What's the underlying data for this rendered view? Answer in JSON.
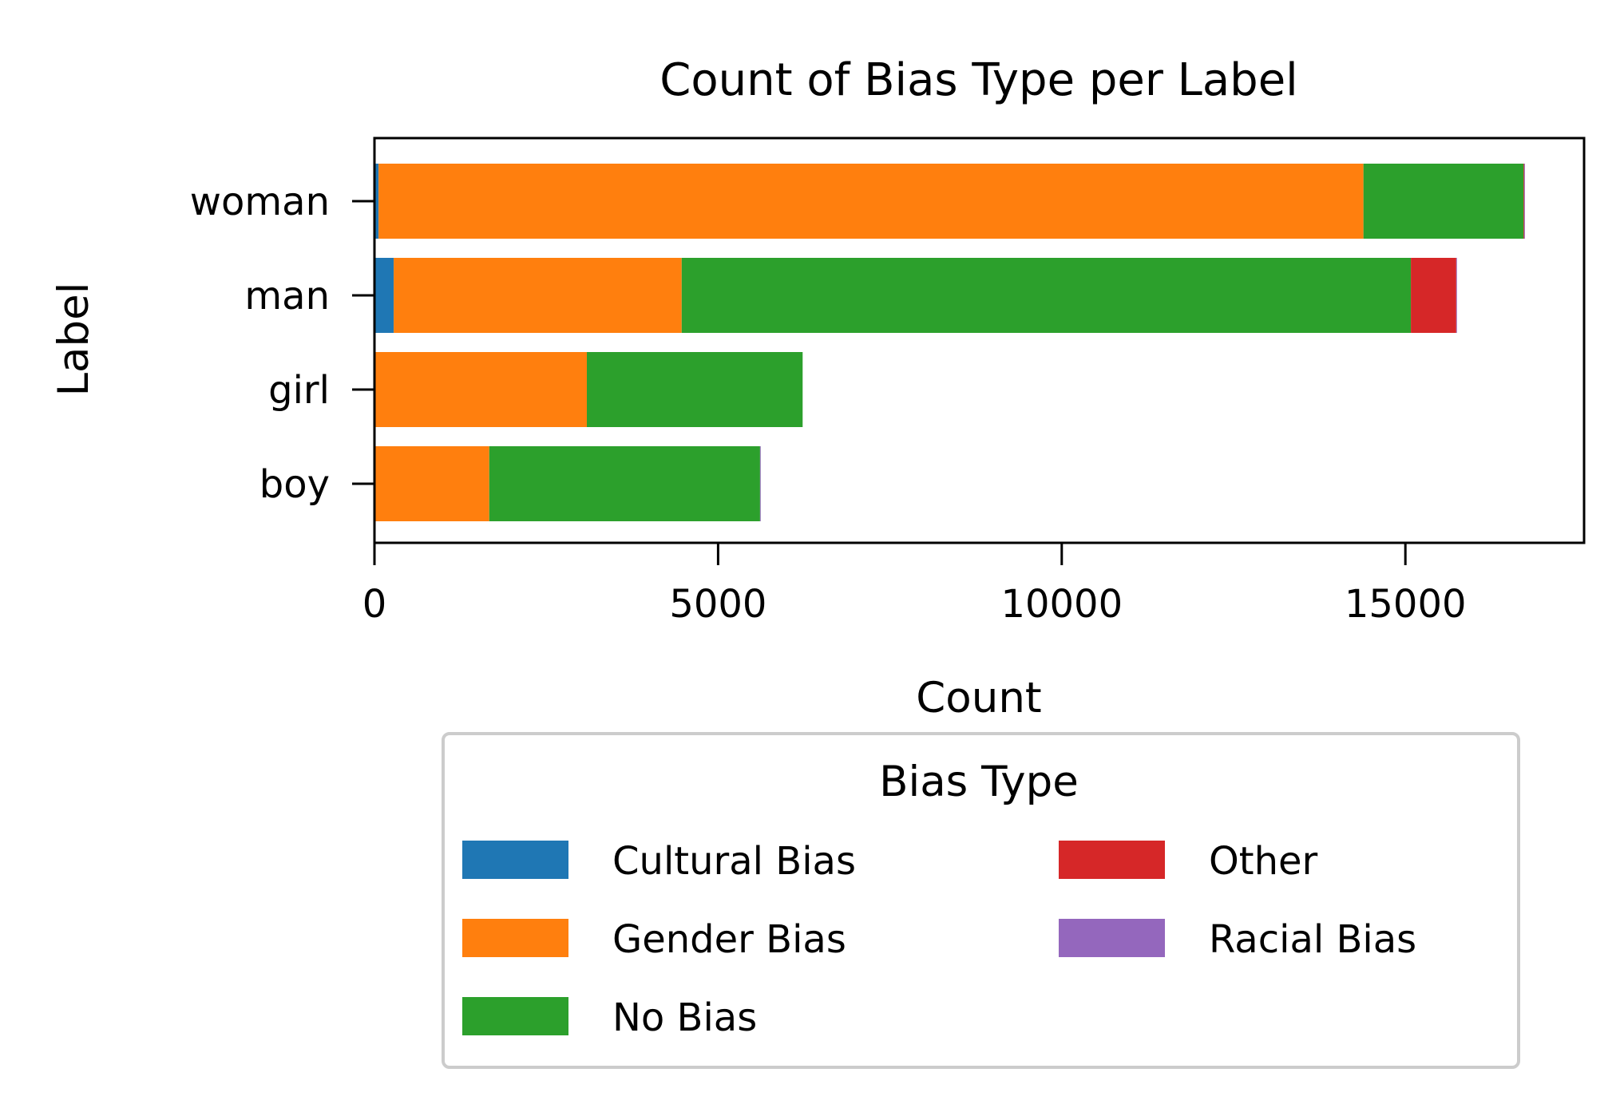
{
  "chart_data": {
    "type": "bar",
    "orientation": "horizontal",
    "stacked": true,
    "title": "Count of Bias Type per Label",
    "xlabel": "Count",
    "ylabel": "Label",
    "xlim": [
      0,
      17600
    ],
    "xticks": [
      0,
      5000,
      10000,
      15000
    ],
    "xtick_labels": [
      "0",
      "5000",
      "10000",
      "15000"
    ],
    "categories": [
      "woman",
      "man",
      "girl",
      "boy"
    ],
    "series": [
      {
        "name": "Cultural Bias",
        "color": "#1f77b4",
        "values": [
          60,
          280,
          10,
          10
        ]
      },
      {
        "name": "Gender Bias",
        "color": "#ff7f0e",
        "values": [
          14330,
          4190,
          3080,
          1660
        ]
      },
      {
        "name": "No Bias",
        "color": "#2ca02c",
        "values": [
          2330,
          10610,
          3140,
          3940
        ]
      },
      {
        "name": "Other",
        "color": "#d62728",
        "values": [
          10,
          660,
          0,
          0
        ]
      },
      {
        "name": "Racial Bias",
        "color": "#9467bd",
        "values": [
          10,
          10,
          0,
          10
        ]
      }
    ],
    "legend": {
      "title": "Bias Type",
      "placement": "below plot, two columns",
      "items": [
        "Cultural Bias",
        "Gender Bias",
        "No Bias",
        "Other",
        "Racial Bias"
      ]
    },
    "grid": false
  }
}
